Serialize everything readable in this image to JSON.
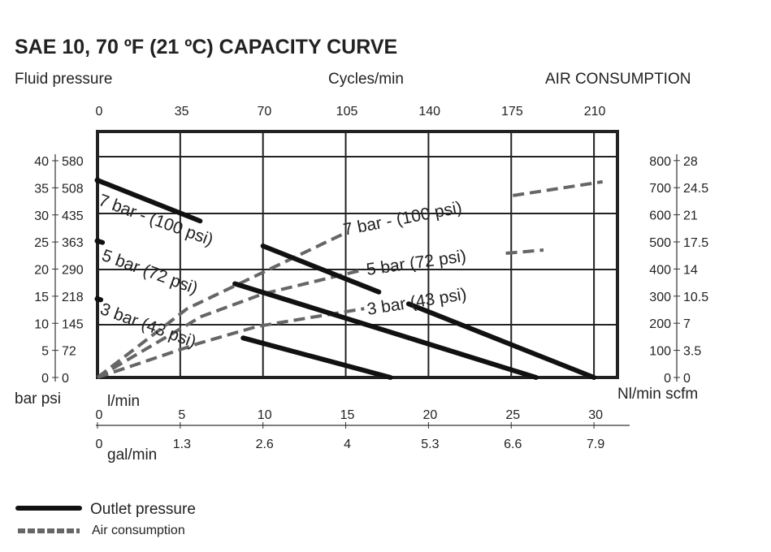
{
  "chart_data": {
    "type": "line",
    "title": "SAE 10, 70 ºF (21 ºC) CAPACITY CURVE",
    "left_axis_title": "Fluid pressure",
    "top_axis_title": "Cycles/min",
    "right_axis_title": "AIR CONSUMPTION",
    "left_axis_units": "bar psi",
    "right_axis_units": "Nl/min scfm",
    "bottom_axis_units_1": "l/min",
    "bottom_axis_units_2": "gal/min",
    "bar_ticks": [
      "40",
      "35",
      "30",
      "25",
      "20",
      "15",
      "10",
      "5",
      "0"
    ],
    "psi_ticks": [
      "580",
      "508",
      "435",
      "363",
      "290",
      "218",
      "145",
      "72",
      "0"
    ],
    "bar_tick_values": [
      40,
      35,
      30,
      25,
      20,
      15,
      10,
      5,
      0
    ],
    "cycles_ticks": [
      "0",
      "35",
      "70",
      "105",
      "140",
      "175",
      "210"
    ],
    "cycles_tick_values": [
      0,
      35,
      70,
      105,
      140,
      175,
      210
    ],
    "nl_ticks": [
      "800",
      "700",
      "600",
      "500",
      "400",
      "300",
      "200",
      "100",
      "0"
    ],
    "nl_tick_values": [
      800,
      700,
      600,
      500,
      400,
      300,
      200,
      100,
      0
    ],
    "scfm_ticks": [
      "28",
      "24.5",
      "21",
      "17.5",
      "14",
      "10.5",
      "7",
      "3.5",
      "0"
    ],
    "lpm_ticks": [
      "0",
      "5",
      "10",
      "15",
      "20",
      "25",
      "30"
    ],
    "lpm_tick_values": [
      0,
      5,
      10,
      15,
      20,
      25,
      30
    ],
    "gpm_ticks": [
      "0",
      "1.3",
      "2.6",
      "4",
      "5.3",
      "6.6",
      "7.9"
    ],
    "xlim_lpm": [
      0,
      32
    ],
    "ylim_bar": [
      0,
      44
    ],
    "ylim_nl": [
      0,
      800
    ],
    "grid": true,
    "outlet_pressure": [
      {
        "name": "7 bar - (100 psi)",
        "points": [
          [
            0,
            36.4
          ],
          [
            30,
            0
          ]
        ],
        "segments": [
          [
            0,
            6.2
          ],
          [
            10,
            17
          ],
          [
            18.8,
            30
          ]
        ]
      },
      {
        "name": "5 bar (72 psi)",
        "points": [
          [
            0,
            25.2
          ],
          [
            26.5,
            0
          ]
        ],
        "segments": [
          [
            0,
            0.3
          ],
          [
            8.3,
            26.5
          ]
        ]
      },
      {
        "name": "3 bar (43 psi)",
        "points": [
          [
            0,
            14.5
          ],
          [
            17.7,
            0
          ]
        ],
        "segments": [
          [
            0,
            0.2
          ],
          [
            8.8,
            17.7
          ]
        ]
      }
    ],
    "air_consumption": [
      {
        "name": "7 bar - (100 psi)",
        "points_cycles_nl": [
          [
            0,
            0
          ],
          [
            38,
            254
          ],
          [
            105,
            533
          ]
        ],
        "points_after_label": [
          [
            176,
            671
          ],
          [
            214,
            722
          ]
        ]
      },
      {
        "name": "5 bar (72 psi)",
        "points_cycles_nl": [
          [
            0,
            0
          ],
          [
            44,
            225
          ],
          [
            70,
            308
          ],
          [
            113,
            398
          ]
        ],
        "points_after_label": [
          [
            173,
            458
          ],
          [
            189,
            470
          ]
        ]
      },
      {
        "name": "3 bar (43 psi)",
        "points_cycles_nl": [
          [
            0,
            0
          ],
          [
            43,
            126
          ],
          [
            68,
            189
          ],
          [
            113,
            254
          ]
        ],
        "points_after_label": []
      }
    ],
    "legend": [
      {
        "label": "Outlet pressure",
        "style": "solid"
      },
      {
        "label": "Air consumption",
        "style": "dashed"
      }
    ],
    "legend_position": "bottom-left",
    "colors": {
      "outlet": "#111111",
      "air": "#666666",
      "grid": "#222222"
    }
  }
}
